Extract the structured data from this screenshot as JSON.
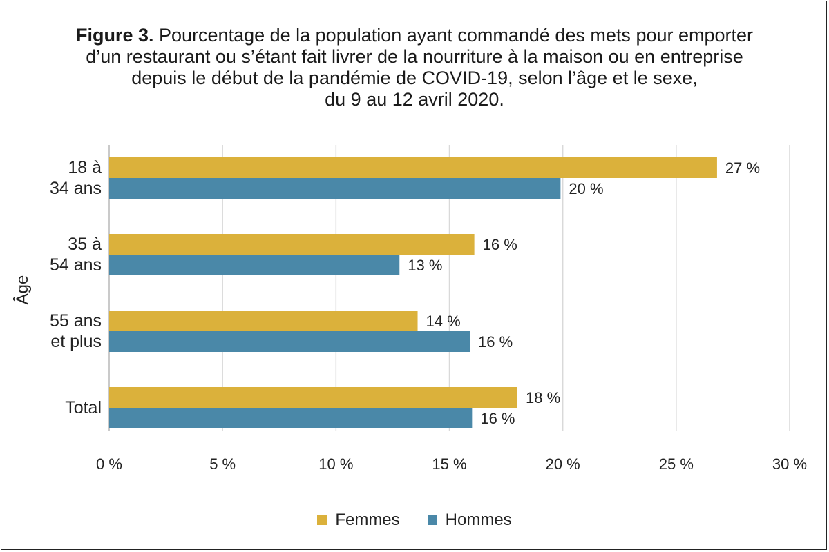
{
  "title": {
    "bold": "Figure 3.",
    "line1": "Pourcentage de la population ayant commandé des mets pour emporter",
    "line2": "d’un restaurant ou s’étant fait livrer de la nourriture à la maison ou en entreprise",
    "line3": "depuis le début de la pandémie de COVID-19, selon l’âge et le sexe,",
    "line4": "du 9 au 12 avril 2020."
  },
  "colors": {
    "femmes": "#DBB13B",
    "hommes": "#4A88A8",
    "grid": "#d9d9d9",
    "text": "#222222"
  },
  "chart_data": {
    "type": "bar",
    "orientation": "horizontal",
    "ylabel": "Âge",
    "xlim": [
      0,
      30
    ],
    "xticks": [
      "0 %",
      "5 %",
      "10 %",
      "15 %",
      "20 %",
      "25 %",
      "30 %"
    ],
    "categories": [
      [
        "18 à",
        "34 ans"
      ],
      [
        "35 à",
        "54 ans"
      ],
      [
        "55 ans",
        "et plus"
      ],
      [
        "Total"
      ]
    ],
    "series": [
      {
        "name": "Femmes",
        "values": [
          26.8,
          16.1,
          13.6,
          18.0
        ],
        "labels": [
          "27 %",
          "16 %",
          "14 %",
          "18 %"
        ]
      },
      {
        "name": "Hommes",
        "values": [
          19.9,
          12.8,
          15.9,
          16.0
        ],
        "labels": [
          "20 %",
          "13 %",
          "16 %",
          "16 %"
        ]
      }
    ],
    "grid": true,
    "legend_position": "bottom"
  }
}
